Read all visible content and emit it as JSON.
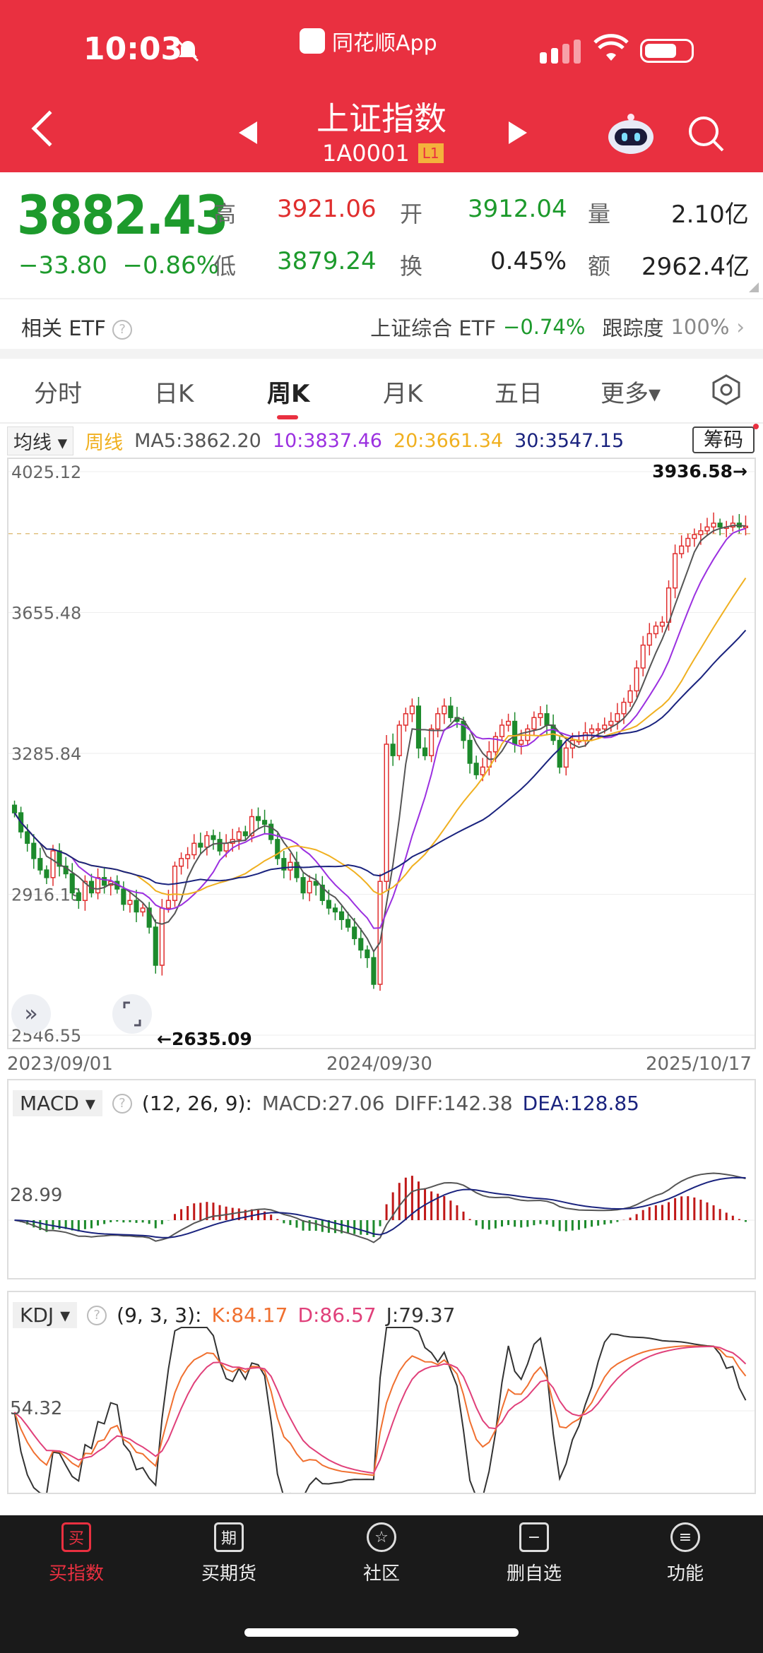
{
  "status": {
    "time": "10:03",
    "app": "同花顺App"
  },
  "header": {
    "title": "上证指数",
    "code": "1A0001",
    "badge": "L1"
  },
  "quote": {
    "price": "3882.43",
    "change": "−33.80",
    "change_pct": "−0.86%",
    "high_label": "高",
    "high": "3921.06",
    "low_label": "低",
    "low": "3879.24",
    "open_label": "开",
    "open": "3912.04",
    "turnover_label": "换",
    "turnover": "0.45%",
    "volume_label": "量",
    "volume": "2.10亿",
    "amount_label": "额",
    "amount": "2962.4亿"
  },
  "etf": {
    "label": "相关 ETF",
    "name": "上证综合 ETF",
    "pct": "−0.74%",
    "track_label": "跟踪度",
    "track": "100%"
  },
  "tabs": [
    {
      "label": "分时"
    },
    {
      "label": "日K"
    },
    {
      "label": "周K"
    },
    {
      "label": "月K"
    },
    {
      "label": "五日"
    },
    {
      "label": "更多▾"
    }
  ],
  "ma": {
    "dropdown": "均线",
    "period": "周线",
    "ma5": "MA5:3862.20",
    "ma10": "10:3837.46",
    "ma20": "20:3661.34",
    "ma30": "30:3547.15",
    "chip": "筹码",
    "colors": {
      "ma5": "#555555",
      "ma10": "#9b30e0",
      "ma20": "#f0b020",
      "ma30": "#1a237e"
    }
  },
  "chart_data": [
    {
      "type": "candlestick",
      "title": "",
      "y_ticks": [
        "4025.12",
        "3655.48",
        "3285.84",
        "2916.19",
        "2546.55"
      ],
      "ylim": [
        2546.55,
        4025.12
      ],
      "x_ticks": [
        "2023/09/01",
        "2024/09/30",
        "2025/10/17"
      ],
      "annotations": {
        "max": "3936.58→",
        "min": "←2635.09"
      },
      "closes": [
        3130,
        3080,
        3050,
        3010,
        2980,
        2960,
        3030,
        2990,
        2970,
        2920,
        2900,
        2950,
        2920,
        2960,
        2940,
        2950,
        2930,
        2890,
        2900,
        2870,
        2880,
        2830,
        2730,
        2880,
        2900,
        2990,
        3010,
        3020,
        3050,
        3040,
        3070,
        3060,
        3030,
        3050,
        3060,
        3080,
        3070,
        3120,
        3110,
        3100,
        3060,
        3010,
        2980,
        3000,
        2960,
        2920,
        2950,
        2940,
        2900,
        2880,
        2870,
        2850,
        2830,
        2800,
        2770,
        2750,
        2680,
        2950,
        3310,
        3280,
        3360,
        3390,
        3410,
        3300,
        3280,
        3350,
        3390,
        3410,
        3380,
        3370,
        3320,
        3260,
        3230,
        3250,
        3290,
        3330,
        3360,
        3370,
        3310,
        3320,
        3350,
        3380,
        3390,
        3360,
        3320,
        3250,
        3300,
        3320,
        3320,
        3340,
        3350,
        3350,
        3360,
        3370,
        3390,
        3420,
        3450,
        3510,
        3570,
        3600,
        3620,
        3630,
        3720,
        3810,
        3830,
        3850,
        3860,
        3870,
        3880,
        3890,
        3880,
        3880,
        3890,
        3880,
        3882
      ],
      "ma_series": [
        {
          "name": "MA5"
        },
        {
          "name": "MA10"
        },
        {
          "name": "MA20"
        },
        {
          "name": "MA30"
        }
      ]
    },
    {
      "type": "bar",
      "title": "MACD",
      "params": "(12, 26, 9):",
      "macd_label": "MACD:27.06",
      "diff_label": "DIFF:142.38",
      "dea_label": "DEA:128.85",
      "y_tick": "28.99"
    },
    {
      "type": "line",
      "title": "KDJ",
      "params": "(9, 3, 3):",
      "k_label": "K:84.17",
      "d_label": "D:86.57",
      "j_label": "J:79.37",
      "y_tick": "54.32"
    }
  ],
  "nav": [
    {
      "label": "买指数",
      "icon": "买"
    },
    {
      "label": "买期货",
      "icon": "期"
    },
    {
      "label": "社区",
      "icon": "☆"
    },
    {
      "label": "删自选",
      "icon": "−"
    },
    {
      "label": "功能",
      "icon": "≡"
    }
  ]
}
